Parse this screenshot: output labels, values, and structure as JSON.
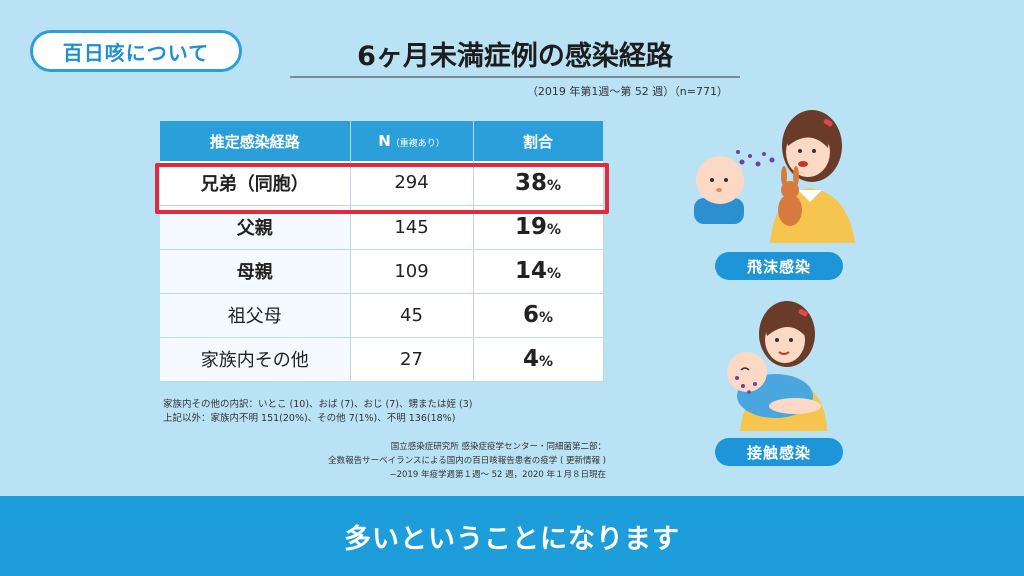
{
  "badge": "百日咳について",
  "title": "6ヶ月未満症例の感染経路",
  "subtitle": "（2019 年第1週〜第 52 週）（n=771）",
  "table": {
    "headers": {
      "route": "推定感染経路",
      "n": "N",
      "n_note": "（重複あり）",
      "pct": "割合"
    },
    "rows": [
      {
        "route": "兄弟（同胞）",
        "n": "294",
        "pct": "38",
        "unit": "%"
      },
      {
        "route": "父親",
        "n": "145",
        "pct": "19",
        "unit": "%"
      },
      {
        "route": "母親",
        "n": "109",
        "pct": "14",
        "unit": "%"
      },
      {
        "route": "祖父母",
        "n": "45",
        "pct": "6",
        "unit": "%"
      },
      {
        "route": "家族内その他",
        "n": "27",
        "pct": "4",
        "unit": "%"
      }
    ]
  },
  "notes": [
    "家族内その他の内訳：いとこ (10)、おば (7)、おじ (7)、甥または姪 (3)",
    "上記以外：家族内不明 151(20%)、その他 7(1%)、不明 136(18%)"
  ],
  "source": [
    "国立感染症研究所 感染症疫学センター・同細菌第二部：",
    "全数報告サーベイランスによる国内の百日咳報告患者の疫学 ( 更新情報 )",
    "−2019 年疫学週第１週〜 52 週，2020 年１月８日現在"
  ],
  "labels": {
    "droplet": "飛沫感染",
    "contact": "接触感染"
  },
  "banner": "多いということになります",
  "colors": {
    "accent": "#1e9ddb",
    "highlight": "#e2293e",
    "background": "#b9e2f5"
  }
}
